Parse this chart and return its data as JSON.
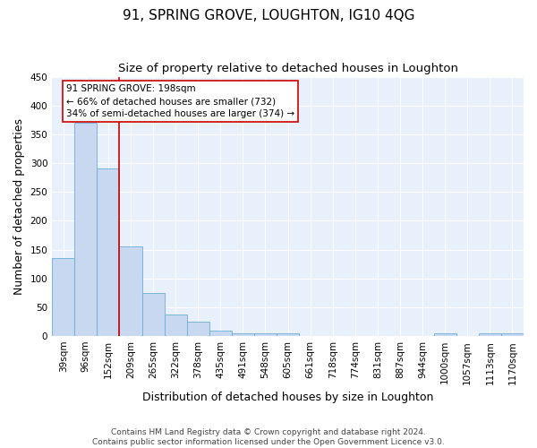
{
  "title": "91, SPRING GROVE, LOUGHTON, IG10 4QG",
  "subtitle": "Size of property relative to detached houses in Loughton",
  "xlabel": "Distribution of detached houses by size in Loughton",
  "ylabel": "Number of detached properties",
  "bar_labels": [
    "39sqm",
    "96sqm",
    "152sqm",
    "209sqm",
    "265sqm",
    "322sqm",
    "378sqm",
    "435sqm",
    "491sqm",
    "548sqm",
    "605sqm",
    "661sqm",
    "718sqm",
    "774sqm",
    "831sqm",
    "887sqm",
    "944sqm",
    "1000sqm",
    "1057sqm",
    "1113sqm",
    "1170sqm"
  ],
  "bar_values": [
    135,
    370,
    290,
    155,
    75,
    38,
    25,
    10,
    5,
    5,
    5,
    0,
    0,
    0,
    0,
    0,
    0,
    5,
    0,
    5,
    5
  ],
  "bar_color": "#c8d8f0",
  "bar_edge_color": "#6baed6",
  "background_color": "#e8f0fb",
  "grid_color": "#ffffff",
  "vline_color": "#cc0000",
  "annotation_text": "91 SPRING GROVE: 198sqm\n← 66% of detached houses are smaller (732)\n34% of semi-detached houses are larger (374) →",
  "annotation_box_color": "#ffffff",
  "annotation_box_edge": "#cc0000",
  "ylim": [
    0,
    450
  ],
  "yticks": [
    0,
    50,
    100,
    150,
    200,
    250,
    300,
    350,
    400,
    450
  ],
  "footer": "Contains HM Land Registry data © Crown copyright and database right 2024.\nContains public sector information licensed under the Open Government Licence v3.0.",
  "title_fontsize": 11,
  "subtitle_fontsize": 9.5,
  "tick_fontsize": 7.5,
  "ylabel_fontsize": 9,
  "xlabel_fontsize": 9,
  "footer_fontsize": 6.5
}
